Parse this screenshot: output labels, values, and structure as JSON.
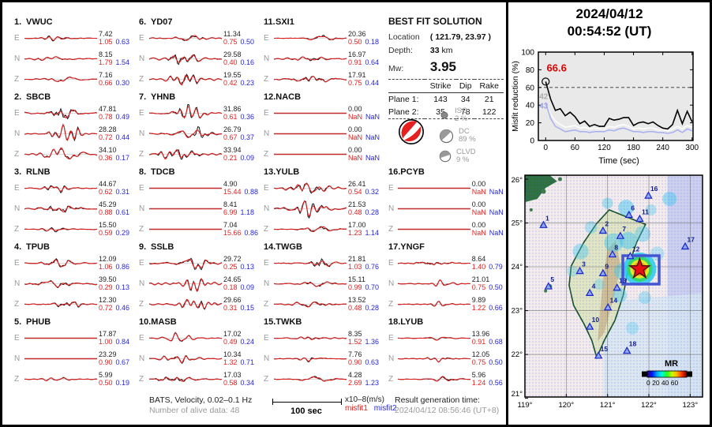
{
  "header_right": {
    "date": "2024/04/12",
    "time": "00:54:52  (UT)"
  },
  "best_fit": {
    "title": "BEST FIT SOLUTION",
    "location_label": "Location",
    "location_value": "( 121.79,  23.97 )",
    "depth_label": "Depth:",
    "depth_value": "33",
    "depth_unit": "km",
    "mw_label": "Mw:",
    "mw_value": "3.95",
    "table": {
      "headers": [
        "Strike",
        "Dip",
        "Rake"
      ],
      "rows": [
        {
          "label": "Plane 1:",
          "values": [
            "143",
            "34",
            "21"
          ]
        },
        {
          "label": "Plane 2:",
          "values": [
            "35",
            "78",
            "122"
          ]
        }
      ]
    },
    "decomposition": [
      {
        "name": "ISO",
        "pct": "2 %"
      },
      {
        "name": "DC",
        "pct": "89 %"
      },
      {
        "name": "CLVD",
        "pct": "9 %"
      }
    ]
  },
  "stations": [
    {
      "num": "1.",
      "code": "VWUC",
      "components": [
        {
          "c": "E",
          "amp": "7.42",
          "misfit1": "1.05",
          "misfit2": "0.63",
          "wiggle": 1
        },
        {
          "c": "N",
          "amp": "8.15",
          "misfit1": "1.79",
          "misfit2": "1.54",
          "wiggle": 1
        },
        {
          "c": "Z",
          "amp": "7.16",
          "misfit1": "0.66",
          "misfit2": "0.30",
          "wiggle": 1
        }
      ]
    },
    {
      "num": "2.",
      "code": "SBCB",
      "components": [
        {
          "c": "E",
          "amp": "47.81",
          "misfit1": "0.78",
          "misfit2": "0.49",
          "wiggle": 3
        },
        {
          "c": "N",
          "amp": "28.28",
          "misfit1": "0.72",
          "misfit2": "0.44",
          "wiggle": 3
        },
        {
          "c": "Z",
          "amp": "34.10",
          "misfit1": "0.36",
          "misfit2": "0.17",
          "wiggle": 3
        }
      ]
    },
    {
      "num": "3.",
      "code": "RLNB",
      "components": [
        {
          "c": "E",
          "amp": "44.67",
          "misfit1": "0.62",
          "misfit2": "0.31",
          "wiggle": 2
        },
        {
          "c": "N",
          "amp": "45.29",
          "misfit1": "0.88",
          "misfit2": "0.61",
          "wiggle": 2
        },
        {
          "c": "Z",
          "amp": "15.50",
          "misfit1": "0.59",
          "misfit2": "0.29",
          "wiggle": 2
        }
      ]
    },
    {
      "num": "4.",
      "code": "TPUB",
      "components": [
        {
          "c": "E",
          "amp": "12.09",
          "misfit1": "1.06",
          "misfit2": "0.86",
          "wiggle": 2
        },
        {
          "c": "N",
          "amp": "39.50",
          "misfit1": "0.29",
          "misfit2": "0.13",
          "wiggle": 3
        },
        {
          "c": "Z",
          "amp": "12.30",
          "misfit1": "0.72",
          "misfit2": "0.46",
          "wiggle": 2
        }
      ]
    },
    {
      "num": "5.",
      "code": "PHUB",
      "components": [
        {
          "c": "E",
          "amp": "17.87",
          "misfit1": "1.00",
          "misfit2": "0.84",
          "wiggle": 0
        },
        {
          "c": "N",
          "amp": "23.29",
          "misfit1": "0.90",
          "misfit2": "0.67",
          "wiggle": 0
        },
        {
          "c": "Z",
          "amp": "5.99",
          "misfit1": "0.50",
          "misfit2": "0.19",
          "wiggle": 1
        }
      ]
    },
    {
      "num": "6.",
      "code": "YD07",
      "components": [
        {
          "c": "E",
          "amp": "11.34",
          "misfit1": "0.75",
          "misfit2": "0.50",
          "wiggle": 2
        },
        {
          "c": "N",
          "amp": "29.58",
          "misfit1": "0.40",
          "misfit2": "0.16",
          "wiggle": 3
        },
        {
          "c": "Z",
          "amp": "19.55",
          "misfit1": "0.42",
          "misfit2": "0.23",
          "wiggle": 3
        }
      ]
    },
    {
      "num": "7.",
      "code": "YHNB",
      "components": [
        {
          "c": "E",
          "amp": "31.86",
          "misfit1": "0.61",
          "misfit2": "0.36",
          "wiggle": 3
        },
        {
          "c": "N",
          "amp": "26.79",
          "misfit1": "0.67",
          "misfit2": "0.37",
          "wiggle": 3
        },
        {
          "c": "Z",
          "amp": "33.94",
          "misfit1": "0.21",
          "misfit2": "0.09",
          "wiggle": 3
        }
      ]
    },
    {
      "num": "8.",
      "code": "TDCB",
      "components": [
        {
          "c": "E",
          "amp": "4.90",
          "misfit1": "15.44",
          "misfit2": "0.88",
          "wiggle": 0
        },
        {
          "c": "N",
          "amp": "8.41",
          "misfit1": "6.99",
          "misfit2": "1.18",
          "wiggle": 0
        },
        {
          "c": "Z",
          "amp": "7.04",
          "misfit1": "15.66",
          "misfit2": "0.86",
          "wiggle": 0
        }
      ]
    },
    {
      "num": "9.",
      "code": "SSLB",
      "components": [
        {
          "c": "E",
          "amp": "29.72",
          "misfit1": "0.25",
          "misfit2": "0.13",
          "wiggle": 3
        },
        {
          "c": "N",
          "amp": "24.65",
          "misfit1": "0.18",
          "misfit2": "0.09",
          "wiggle": 3
        },
        {
          "c": "Z",
          "amp": "29.66",
          "misfit1": "0.31",
          "misfit2": "0.15",
          "wiggle": 3
        }
      ]
    },
    {
      "num": "10.",
      "code": "MASB",
      "components": [
        {
          "c": "E",
          "amp": "17.02",
          "misfit1": "0.49",
          "misfit2": "0.24",
          "wiggle": 2
        },
        {
          "c": "N",
          "amp": "10.34",
          "misfit1": "1.32",
          "misfit2": "0.71",
          "wiggle": 2
        },
        {
          "c": "Z",
          "amp": "17.03",
          "misfit1": "0.58",
          "misfit2": "0.34",
          "wiggle": 2
        }
      ]
    },
    {
      "num": "11.",
      "code": "SXI1",
      "components": [
        {
          "c": "E",
          "amp": "20.36",
          "misfit1": "0.50",
          "misfit2": "0.18",
          "wiggle": 2
        },
        {
          "c": "N",
          "amp": "16.97",
          "misfit1": "0.91",
          "misfit2": "0.64",
          "wiggle": 2
        },
        {
          "c": "Z",
          "amp": "17.91",
          "misfit1": "0.75",
          "misfit2": "0.44",
          "wiggle": 2
        }
      ]
    },
    {
      "num": "12.",
      "code": "NACB",
      "components": [
        {
          "c": "E",
          "amp": "0.00",
          "misfit1": "NaN",
          "misfit2": "NaN",
          "wiggle": 0
        },
        {
          "c": "N",
          "amp": "0.00",
          "misfit1": "NaN",
          "misfit2": "NaN",
          "wiggle": 0
        },
        {
          "c": "Z",
          "amp": "0.00",
          "misfit1": "NaN",
          "misfit2": "NaN",
          "wiggle": 0
        }
      ]
    },
    {
      "num": "13.",
      "code": "YULB",
      "components": [
        {
          "c": "E",
          "amp": "26.41",
          "misfit1": "0.54",
          "misfit2": "0.32",
          "wiggle": 3
        },
        {
          "c": "N",
          "amp": "21.53",
          "misfit1": "0.48",
          "misfit2": "0.28",
          "wiggle": 3
        },
        {
          "c": "Z",
          "amp": "17.00",
          "misfit1": "1.23",
          "misfit2": "1.14",
          "wiggle": 2
        }
      ]
    },
    {
      "num": "14.",
      "code": "TWGB",
      "components": [
        {
          "c": "E",
          "amp": "21.81",
          "misfit1": "1.03",
          "misfit2": "0.76",
          "wiggle": 2
        },
        {
          "c": "N",
          "amp": "15.11",
          "misfit1": "0.99",
          "misfit2": "0.70",
          "wiggle": 2
        },
        {
          "c": "Z",
          "amp": "13.52",
          "misfit1": "0.48",
          "misfit2": "0.28",
          "wiggle": 2
        }
      ]
    },
    {
      "num": "15.",
      "code": "TWKB",
      "components": [
        {
          "c": "E",
          "amp": "8.35",
          "misfit1": "1.52",
          "misfit2": "1.36",
          "wiggle": 1
        },
        {
          "c": "N",
          "amp": "7.76",
          "misfit1": "0.90",
          "misfit2": "0.63",
          "wiggle": 1
        },
        {
          "c": "Z",
          "amp": "4.28",
          "misfit1": "2.69",
          "misfit2": "1.23",
          "wiggle": 1
        }
      ]
    },
    {
      "num": "16.",
      "code": "PCYB",
      "components": [
        {
          "c": "E",
          "amp": "0.00",
          "misfit1": "NaN",
          "misfit2": "NaN",
          "wiggle": 0
        },
        {
          "c": "N",
          "amp": "0.00",
          "misfit1": "NaN",
          "misfit2": "NaN",
          "wiggle": 0
        },
        {
          "c": "Z",
          "amp": "0.00",
          "misfit1": "NaN",
          "misfit2": "NaN",
          "wiggle": 0
        }
      ]
    },
    {
      "num": "17.",
      "code": "YNGF",
      "components": [
        {
          "c": "E",
          "amp": "8.64",
          "misfit1": "1.40",
          "misfit2": "0.79",
          "wiggle": 1
        },
        {
          "c": "N",
          "amp": "21.01",
          "misfit1": "0.75",
          "misfit2": "0.50",
          "wiggle": 1
        },
        {
          "c": "Z",
          "amp": "9.89",
          "misfit1": "1.22",
          "misfit2": "0.66",
          "wiggle": 1
        }
      ]
    },
    {
      "num": "18.",
      "code": "LYUB",
      "components": [
        {
          "c": "E",
          "amp": "13.96",
          "misfit1": "0.91",
          "misfit2": "0.68",
          "wiggle": 1
        },
        {
          "c": "N",
          "amp": "12.05",
          "misfit1": "0.75",
          "misfit2": "0.50",
          "wiggle": 1
        },
        {
          "c": "Z",
          "amp": "5.96",
          "misfit1": "1.24",
          "misfit2": "0.56",
          "wiggle": 1
        }
      ]
    }
  ],
  "chart_data": {
    "type": "line",
    "title": "",
    "xlabel": "Time (sec)",
    "ylabel": "Misfit reduction (%)",
    "xlim": [
      -15,
      302
    ],
    "ylim": [
      0,
      100
    ],
    "xticks": [
      0,
      60,
      120,
      180,
      240,
      300
    ],
    "yticks": [
      0,
      20,
      40,
      60,
      80,
      100
    ],
    "dashed_line_y": 60,
    "grid": false,
    "annotations": [
      {
        "text": "66.6",
        "color": "#e20000",
        "at": [
          2,
          78
        ]
      },
      {
        "text": "42",
        "color": "#aaaaaa",
        "at": [
          -13,
          47
        ]
      },
      {
        "text": "43",
        "color": "#9aa2ee",
        "at": [
          -13,
          36
        ]
      }
    ],
    "marker": {
      "x": 0,
      "y": 66.6
    },
    "x": [
      0,
      10,
      20,
      30,
      40,
      50,
      60,
      70,
      80,
      90,
      100,
      110,
      120,
      130,
      140,
      150,
      160,
      170,
      180,
      190,
      200,
      210,
      220,
      230,
      240,
      250,
      260,
      270,
      280,
      290,
      300
    ],
    "series": [
      {
        "name": "best-solution",
        "color": "#000000",
        "values": [
          66.6,
          47,
          34,
          36,
          28,
          32,
          27,
          19,
          22,
          16,
          18,
          16,
          16,
          25,
          23,
          24,
          26,
          26,
          17,
          20,
          21,
          19,
          21,
          17,
          14,
          13,
          18,
          34,
          19,
          33,
          21
        ]
      },
      {
        "name": "reference-white",
        "color": "#ffffff",
        "values": [
          42,
          30,
          22,
          18,
          15,
          16,
          17,
          14,
          15,
          13,
          14,
          13,
          13,
          16,
          15,
          17,
          18,
          16,
          13,
          14,
          13,
          14,
          14,
          12,
          12,
          11,
          13,
          16,
          13,
          17,
          15
        ]
      },
      {
        "name": "reference-purple",
        "color": "#a8aef2",
        "values": [
          43,
          25,
          16,
          13,
          10,
          11,
          12,
          10,
          10,
          9,
          10,
          10,
          10,
          12,
          11,
          13,
          14,
          12,
          10,
          10,
          9,
          10,
          10,
          9,
          9,
          8,
          9,
          12,
          9,
          13,
          11
        ]
      }
    ]
  },
  "map": {
    "lat_ticks": [
      "26°",
      "25°",
      "24°",
      "23°",
      "22°",
      "21°"
    ],
    "lat_values": [
      26,
      25,
      24,
      23,
      22,
      21
    ],
    "lon_ticks": [
      "119°",
      "120°",
      "121°",
      "122°",
      "123°"
    ],
    "lon_values": [
      119,
      120,
      121,
      122,
      123
    ],
    "colorbar": {
      "label": "MR",
      "ticks": "0 20 40 60"
    },
    "epicenter": {
      "lon": 121.72,
      "lat": 23.95
    },
    "highlight_box": {
      "lon": 121.81,
      "lat": 23.93
    },
    "stations": [
      {
        "n": "1",
        "lon": 119.45,
        "lat": 24.95
      },
      {
        "n": "2",
        "lon": 120.89,
        "lat": 24.82
      },
      {
        "n": "3",
        "lon": 120.33,
        "lat": 23.9
      },
      {
        "n": "4",
        "lon": 120.57,
        "lat": 23.4
      },
      {
        "n": "5",
        "lon": 119.57,
        "lat": 23.55
      },
      {
        "n": "6",
        "lon": 121.52,
        "lat": 25.18
      },
      {
        "n": "7",
        "lon": 121.31,
        "lat": 24.7
      },
      {
        "n": "8",
        "lon": 121.12,
        "lat": 24.28
      },
      {
        "n": "9",
        "lon": 120.89,
        "lat": 23.85
      },
      {
        "n": "10",
        "lon": 120.57,
        "lat": 22.63
      },
      {
        "n": "11",
        "lon": 121.78,
        "lat": 25.09
      },
      {
        "n": "12",
        "lon": 121.55,
        "lat": 24.24
      },
      {
        "n": "13",
        "lon": 121.23,
        "lat": 23.52
      },
      {
        "n": "14",
        "lon": 121.01,
        "lat": 23.07
      },
      {
        "n": "15",
        "lon": 120.78,
        "lat": 21.97
      },
      {
        "n": "16",
        "lon": 121.99,
        "lat": 25.62
      },
      {
        "n": "17",
        "lon": 122.88,
        "lat": 24.46
      },
      {
        "n": "18",
        "lon": 121.47,
        "lat": 22.08
      }
    ]
  },
  "footer": {
    "line1": "BATS, Velocity, 0.02–0.1 Hz",
    "line2": "Number of alive data: 48",
    "scalebar_label": "100 sec",
    "units": "x10–8(m/s)",
    "misfit1_label": "misfit1",
    "misfit2_label": "misfit2",
    "result_label": "Result generation time:",
    "result_value": "2024/04/12 08:56:46 (UT+8)"
  }
}
